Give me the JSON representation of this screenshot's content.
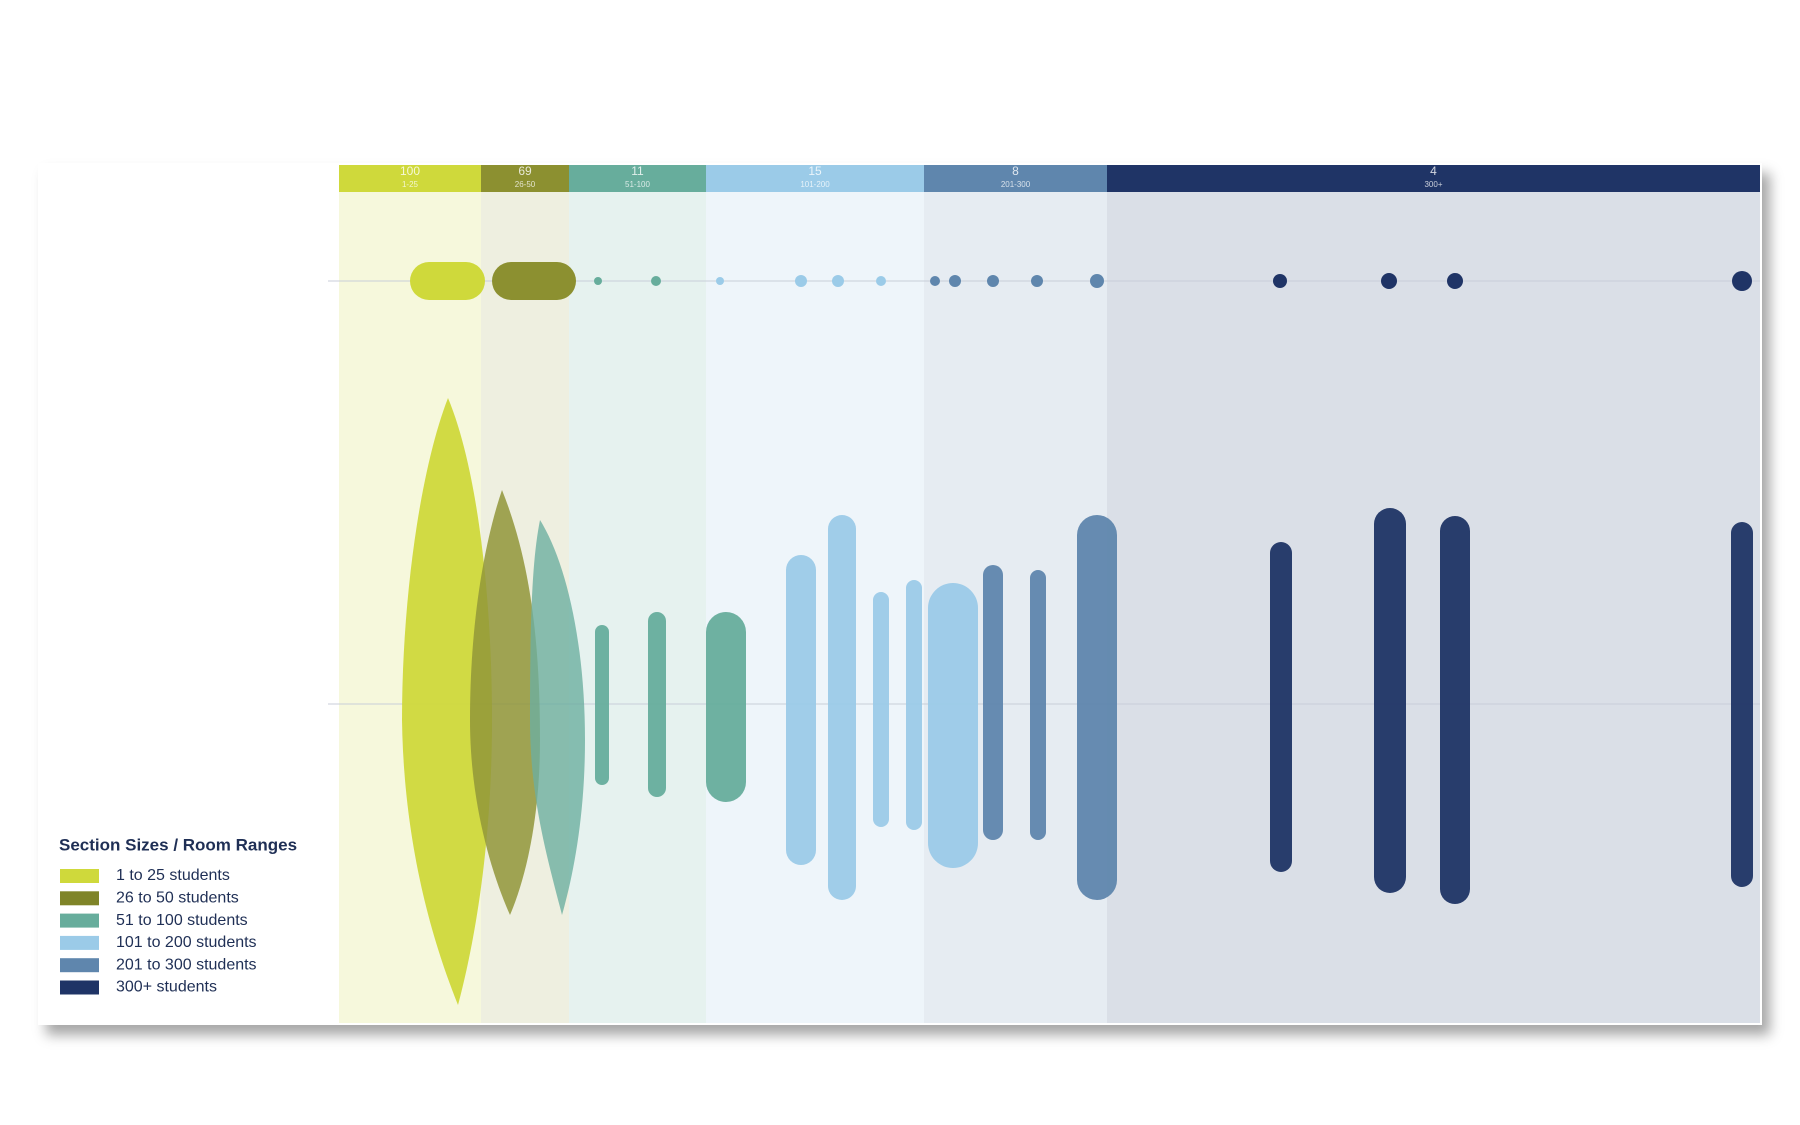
{
  "bands": [
    {
      "count": 100,
      "range": "1-25",
      "color": "#cfd93b",
      "tint": "#f6f8dc"
    },
    {
      "count": 69,
      "range": "26-50",
      "color": "#8c9030",
      "tint": "#eeefe0"
    },
    {
      "count": 11,
      "range": "51-100",
      "color": "#67ad9c",
      "tint": "#e6f2ef"
    },
    {
      "count": 15,
      "range": "101-200",
      "color": "#9bcbe8",
      "tint": "#eef5fa"
    },
    {
      "count": 8,
      "range": "201-300",
      "color": "#5f86ad",
      "tint": "#e6ecf2"
    },
    {
      "count": 4,
      "range": "300+",
      "color": "#1f3466",
      "tint": "#dadfe7"
    }
  ],
  "legend": {
    "title": "Section Sizes / Room Ranges",
    "items": [
      {
        "label": "1 to 25 students",
        "color": "#cfd93b"
      },
      {
        "label": "26 to 50 students",
        "color": "#7f8428"
      },
      {
        "label": "51 to 100 students",
        "color": "#67ad9c"
      },
      {
        "label": "101 to 200 students",
        "color": "#9bcbe8"
      },
      {
        "label": "201 to 300 students",
        "color": "#5f86ad"
      },
      {
        "label": "300+ students",
        "color": "#1f3466"
      }
    ]
  }
}
